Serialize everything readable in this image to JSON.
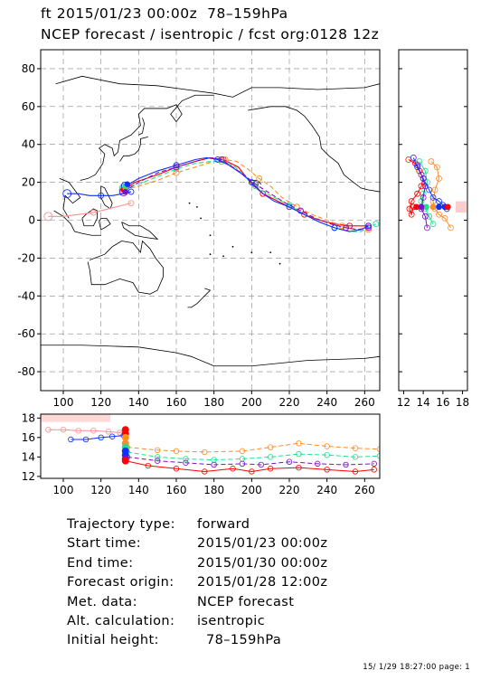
{
  "header": {
    "line1": "ft 2015/01/23 00:00z  78–159hPa",
    "line2": "NCEP forecast / isentropic / fcst org:0128 12z"
  },
  "info": [
    {
      "label": "Trajectory type:",
      "value": "forward"
    },
    {
      "label": "Start time:",
      "value": "2015/01/23 00:00z"
    },
    {
      "label": "End time:",
      "value": "2015/01/30 00:00z"
    },
    {
      "label": "Forecast origin:",
      "value": "2015/01/28 12:00z"
    },
    {
      "label": "Met. data:",
      "value": "NCEP forecast"
    },
    {
      "label": "Alt. calculation:",
      "value": "isentropic"
    },
    {
      "label": "Initial height:",
      "value": "  78–159hPa"
    }
  ],
  "footer": "15/ 1/29 18:27:00 page: 1",
  "colors": {
    "red": "#ff0000",
    "orange": "#ff8c28",
    "green": "#20e090",
    "blue": "#1030ff",
    "purple": "#7a10c8",
    "salmon": "#ff9090"
  },
  "chart_data": [
    {
      "name": "map",
      "type": "line",
      "xlim": [
        88,
        268
      ],
      "ylim": [
        -90,
        90
      ],
      "xticks": [
        100,
        120,
        140,
        160,
        180,
        200,
        220,
        240,
        260
      ],
      "yticks": [
        -80,
        -60,
        -40,
        -20,
        0,
        20,
        40,
        60,
        80
      ],
      "grid": true,
      "series": [
        {
          "color": "red",
          "dash": "solid",
          "lon": [
            132,
            138,
            150,
            160,
            170,
            178,
            185,
            193,
            200,
            206,
            212,
            220,
            228,
            236,
            244,
            252,
            258,
            262
          ],
          "lat": [
            16,
            20,
            24,
            28,
            31,
            33,
            32,
            28,
            19,
            14,
            11,
            7,
            3,
            0,
            -2,
            -3,
            -3,
            -3
          ]
        },
        {
          "color": "orange",
          "dash": "dashed",
          "lon": [
            132,
            140,
            150,
            160,
            170,
            180,
            186,
            192,
            198,
            204,
            210,
            216,
            224,
            232,
            240,
            248,
            256,
            262
          ],
          "lat": [
            16,
            18,
            21,
            25,
            28,
            31,
            32,
            31,
            27,
            22,
            18,
            12,
            7,
            3,
            0,
            -3,
            -5,
            -5
          ]
        },
        {
          "color": "green",
          "dash": "dashed",
          "lon": [
            132,
            140,
            150,
            160,
            170,
            178,
            184,
            190,
            196,
            202,
            208,
            214,
            220,
            228,
            236,
            244,
            252,
            258,
            266
          ],
          "lat": [
            17,
            19,
            23,
            27,
            30,
            31,
            31,
            29,
            24,
            18,
            14,
            11,
            8,
            3,
            -1,
            -4,
            -6,
            -6,
            -2
          ]
        },
        {
          "color": "blue",
          "dash": "solid",
          "lon": [
            133,
            140,
            150,
            160,
            170,
            176,
            182,
            188,
            194,
            200,
            206,
            212,
            220,
            228,
            236,
            244,
            252,
            258,
            262
          ],
          "lat": [
            18,
            22,
            26,
            29,
            32,
            33,
            32,
            29,
            25,
            20,
            14,
            10,
            7,
            3,
            -1,
            -4,
            -6,
            -5,
            -3
          ]
        },
        {
          "color": "purple",
          "dash": "dashed",
          "lon": [
            132,
            140,
            150,
            160,
            170,
            178,
            184,
            190,
            196,
            202,
            210,
            218,
            226,
            234,
            242,
            250,
            256,
            262
          ],
          "lat": [
            15,
            20,
            25,
            28,
            31,
            33,
            32,
            28,
            24,
            19,
            14,
            9,
            5,
            1,
            -2,
            -4,
            -5,
            -4
          ]
        },
        {
          "color": "blue",
          "dash": "solid",
          "lon": [
            102,
            108,
            114,
            120,
            126,
            132,
            136
          ],
          "lat": [
            14,
            14,
            13,
            13,
            13,
            14,
            15
          ]
        },
        {
          "color": "salmon",
          "dash": "solid",
          "lon": [
            92,
            100,
            108,
            116,
            124,
            132,
            136
          ],
          "lat": [
            2,
            2,
            3,
            4,
            6,
            8,
            9
          ]
        }
      ]
    },
    {
      "name": "side-panel",
      "type": "line",
      "xlim": [
        11.5,
        18.5
      ],
      "ylim": [
        -90,
        90
      ],
      "xticks": [
        12,
        14,
        16,
        18
      ],
      "series": [
        {
          "color": "red",
          "x": [
            12.5,
            13.2,
            13.6,
            14.0,
            13.8,
            13.4,
            12.8,
            12.6,
            12.8,
            13.0
          ],
          "lat": [
            32,
            30,
            26,
            22,
            18,
            14,
            10,
            6,
            3,
            7
          ]
        },
        {
          "color": "orange",
          "x": [
            14.8,
            15.4,
            15.6,
            15.2,
            15.0,
            15.2,
            15.6,
            16.2,
            16.8
          ],
          "lat": [
            31,
            28,
            22,
            16,
            10,
            6,
            3,
            1,
            -4
          ]
        },
        {
          "color": "green",
          "x": [
            13.6,
            14.2,
            14.4,
            14.0,
            13.8,
            14.2,
            14.6,
            15.0
          ],
          "lat": [
            31,
            26,
            20,
            14,
            10,
            6,
            2,
            -2
          ]
        },
        {
          "color": "blue",
          "x": [
            13.0,
            13.4,
            14.0,
            14.6,
            15.0,
            15.6,
            16.0,
            16.4
          ],
          "lat": [
            33,
            28,
            22,
            16,
            12,
            10,
            8,
            6
          ]
        },
        {
          "color": "purple",
          "x": [
            13.4,
            13.8,
            14.2,
            14.0,
            13.8,
            14.2,
            14.4
          ],
          "lat": [
            29,
            24,
            18,
            12,
            6,
            2,
            -4
          ]
        }
      ]
    },
    {
      "name": "bottom-panel",
      "type": "line",
      "xlim": [
        88,
        268
      ],
      "ylim": [
        11.8,
        18.4
      ],
      "xticks": [
        100,
        120,
        140,
        160,
        180,
        200,
        220,
        240,
        260
      ],
      "yticks": [
        12,
        14,
        16,
        18
      ],
      "series": [
        {
          "color": "salmon",
          "lon": [
            92,
            100,
            108,
            116,
            124,
            130,
            133
          ],
          "y": [
            16.8,
            16.8,
            16.7,
            16.7,
            16.6,
            16.5,
            16.7
          ]
        },
        {
          "color": "blue",
          "lon": [
            104,
            112,
            120,
            126,
            132
          ],
          "y": [
            15.8,
            15.8,
            16.0,
            16.1,
            16.2
          ]
        },
        {
          "color": "orange",
          "lon": [
            134,
            150,
            160,
            175,
            195,
            210,
            225,
            240,
            255,
            268
          ],
          "y": [
            15.0,
            14.7,
            14.6,
            14.5,
            14.6,
            15.0,
            15.4,
            15.1,
            14.9,
            14.8
          ]
        },
        {
          "color": "green",
          "lon": [
            134,
            150,
            165,
            180,
            195,
            210,
            225,
            240,
            255,
            268
          ],
          "y": [
            14.5,
            14.0,
            13.8,
            13.7,
            13.8,
            14.0,
            14.3,
            14.2,
            14.0,
            14.1
          ]
        },
        {
          "color": "purple",
          "lon": [
            134,
            150,
            165,
            180,
            195,
            205,
            220,
            235,
            250,
            265
          ],
          "y": [
            14.0,
            13.6,
            13.4,
            13.2,
            13.3,
            13.2,
            13.5,
            13.3,
            13.2,
            13.3
          ]
        },
        {
          "color": "red",
          "lon": [
            133,
            145,
            160,
            175,
            190,
            200,
            210,
            225,
            240,
            255,
            265
          ],
          "y": [
            13.6,
            13.1,
            12.8,
            12.5,
            12.8,
            12.5,
            12.8,
            12.9,
            12.7,
            12.5,
            12.7
          ]
        }
      ]
    }
  ]
}
